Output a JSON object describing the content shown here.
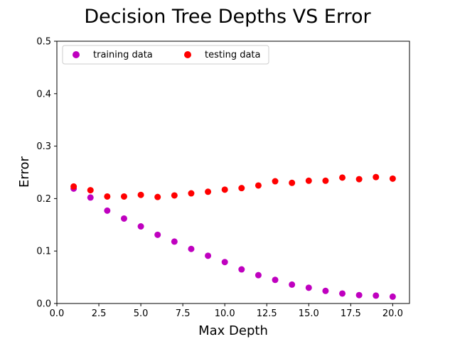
{
  "chart_data": {
    "type": "scatter",
    "title": "Decision Tree Depths VS Error",
    "xlabel": "Max Depth",
    "ylabel": "Error",
    "xlim": [
      0.0,
      21.0
    ],
    "ylim": [
      0.0,
      0.5
    ],
    "xticks": [
      0.0,
      2.5,
      5.0,
      7.5,
      10.0,
      12.5,
      15.0,
      17.5,
      20.0
    ],
    "xtick_labels": [
      "0.0",
      "2.5",
      "5.0",
      "7.5",
      "10.0",
      "12.5",
      "15.0",
      "17.5",
      "20.0"
    ],
    "yticks": [
      0.0,
      0.1,
      0.2,
      0.3,
      0.4,
      0.5
    ],
    "ytick_labels": [
      "0.0",
      "0.1",
      "0.2",
      "0.3",
      "0.4",
      "0.5"
    ],
    "grid": false,
    "legend": {
      "placement": "top-left",
      "columns": 2
    },
    "series": [
      {
        "name": "training data",
        "color": "#bf00bf",
        "x": [
          1,
          2,
          3,
          4,
          5,
          6,
          7,
          8,
          9,
          10,
          11,
          12,
          13,
          14,
          15,
          16,
          17,
          18,
          19,
          20
        ],
        "y": [
          0.219,
          0.202,
          0.177,
          0.162,
          0.147,
          0.131,
          0.118,
          0.104,
          0.091,
          0.079,
          0.065,
          0.054,
          0.045,
          0.036,
          0.03,
          0.024,
          0.019,
          0.016,
          0.015,
          0.013
        ]
      },
      {
        "name": "testing data",
        "color": "#ff0000",
        "x": [
          1,
          2,
          3,
          4,
          5,
          6,
          7,
          8,
          9,
          10,
          11,
          12,
          13,
          14,
          15,
          16,
          17,
          18,
          19,
          20
        ],
        "y": [
          0.223,
          0.216,
          0.204,
          0.204,
          0.207,
          0.203,
          0.206,
          0.21,
          0.213,
          0.217,
          0.22,
          0.225,
          0.233,
          0.23,
          0.234,
          0.234,
          0.24,
          0.237,
          0.241,
          0.238
        ]
      }
    ]
  }
}
